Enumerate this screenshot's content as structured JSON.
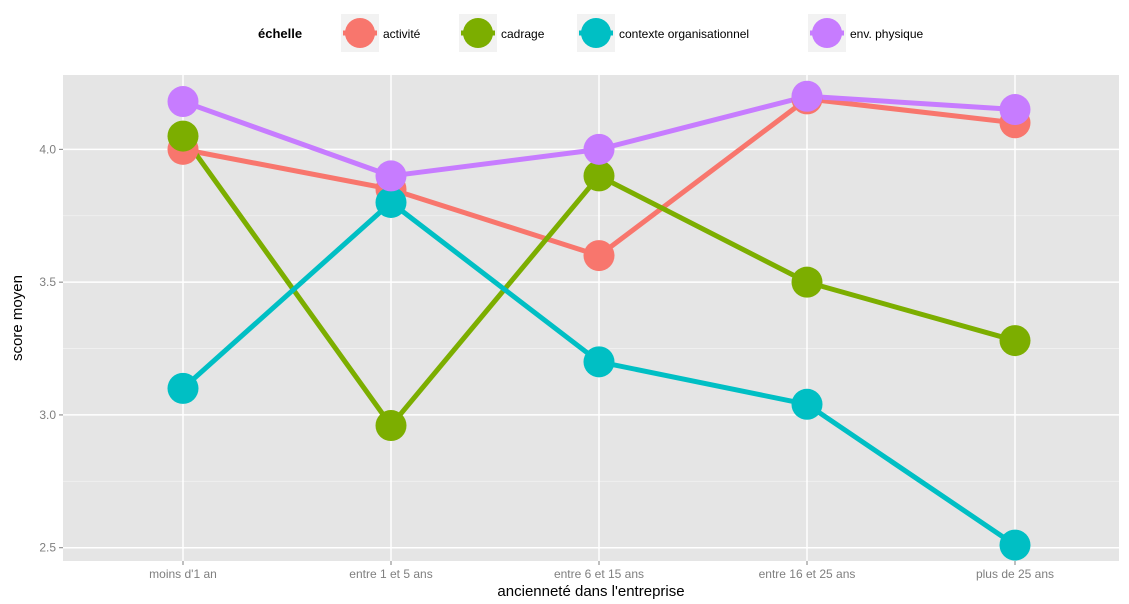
{
  "chart_data": {
    "type": "line",
    "xlabel": "ancienneté dans l'entreprise",
    "ylabel": "score moyen",
    "categories": [
      "moins d'1 an",
      "entre 1 et 5 ans",
      "entre 6 et 15 ans",
      "entre 16 et 25 ans",
      "plus de 25 ans"
    ],
    "ylim": [
      2.45,
      4.28
    ],
    "yticks": [
      2.5,
      3.0,
      3.5,
      4.0
    ],
    "ytick_labels": [
      "2.5",
      "3.0",
      "3.5",
      "4.0"
    ],
    "grid": true,
    "legend": {
      "title": "échelle",
      "position": "top"
    },
    "series": [
      {
        "name": "activité",
        "color": "#F8766D",
        "values": [
          4.0,
          3.85,
          3.6,
          4.19,
          4.1
        ]
      },
      {
        "name": "cadrage",
        "color": "#7CAE00",
        "values": [
          4.05,
          2.96,
          3.9,
          3.5,
          3.28
        ]
      },
      {
        "name": "contexte organisationnel",
        "color": "#00BFC4",
        "values": [
          3.1,
          3.8,
          3.2,
          3.04,
          2.51
        ]
      },
      {
        "name": "env. physique",
        "color": "#C77CFF",
        "values": [
          4.18,
          3.9,
          4.0,
          4.2,
          4.15
        ]
      }
    ]
  }
}
